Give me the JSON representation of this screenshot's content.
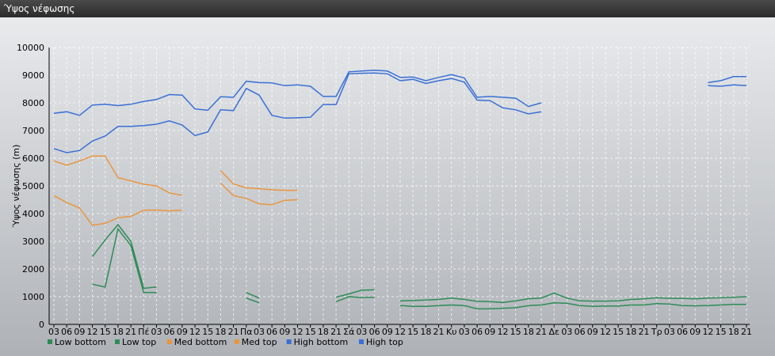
{
  "window": {
    "title": "Ύψος νέφωσης"
  },
  "chart_data": {
    "type": "line",
    "ylabel": "Ύψος νέφωσης (m)",
    "ylim": [
      0,
      10000
    ],
    "yticks": [
      0,
      1000,
      2000,
      3000,
      4000,
      5000,
      6000,
      7000,
      8000,
      9000,
      10000
    ],
    "grid": true,
    "legend_position": "bottom-left",
    "x_tick_labels": [
      "03",
      "06",
      "09",
      "12",
      "15",
      "18",
      "21",
      "Πέ",
      "03",
      "06",
      "09",
      "12",
      "15",
      "18",
      "21",
      "Πα",
      "03",
      "06",
      "09",
      "12",
      "15",
      "18",
      "21",
      "Σά",
      "03",
      "06",
      "09",
      "12",
      "15",
      "18",
      "21",
      "Κυ",
      "03",
      "06",
      "09",
      "12",
      "15",
      "18",
      "21",
      "Δε",
      "03",
      "06",
      "09",
      "12",
      "15",
      "18",
      "21",
      "Τρ",
      "03",
      "06",
      "09",
      "12",
      "15",
      "18",
      "21"
    ],
    "series": [
      {
        "name": "Low bottom",
        "color": "#2e8b57",
        "values": [
          null,
          null,
          null,
          1450,
          1350,
          3450,
          2850,
          1150,
          1150,
          null,
          null,
          null,
          null,
          null,
          null,
          950,
          780,
          null,
          null,
          null,
          null,
          null,
          820,
          1000,
          970,
          980,
          null,
          680,
          650,
          650,
          680,
          700,
          680,
          560,
          560,
          580,
          600,
          680,
          700,
          780,
          760,
          680,
          650,
          660,
          660,
          700,
          700,
          750,
          730,
          680,
          670,
          680,
          700,
          720,
          720
        ]
      },
      {
        "name": "Low top",
        "color": "#2e8b57",
        "values": [
          null,
          null,
          null,
          2450,
          3050,
          3600,
          3000,
          1300,
          1350,
          null,
          null,
          null,
          null,
          null,
          null,
          1150,
          950,
          null,
          null,
          null,
          null,
          null,
          980,
          1100,
          1230,
          1250,
          null,
          850,
          860,
          880,
          900,
          950,
          900,
          830,
          820,
          790,
          850,
          920,
          950,
          1130,
          950,
          850,
          840,
          840,
          850,
          900,
          920,
          960,
          940,
          940,
          920,
          950,
          960,
          980,
          1000
        ]
      },
      {
        "name": "Med bottom",
        "color": "#e8963f",
        "values": [
          4650,
          4400,
          4200,
          3580,
          3650,
          3850,
          3900,
          4120,
          4130,
          4100,
          4120,
          null,
          null,
          5100,
          4650,
          4550,
          4350,
          4320,
          4480,
          4500,
          null,
          null,
          null,
          null,
          null,
          null,
          null,
          null,
          null,
          null,
          null,
          null,
          null,
          null,
          null,
          null,
          null,
          null,
          null,
          null,
          null,
          null,
          null,
          null,
          null,
          null,
          null,
          null,
          null,
          null,
          null,
          null,
          null,
          null,
          null
        ]
      },
      {
        "name": "Med top",
        "color": "#e8963f",
        "values": [
          5900,
          5750,
          5900,
          6080,
          6080,
          5300,
          5180,
          5060,
          5000,
          4750,
          4660,
          null,
          null,
          5550,
          5070,
          4930,
          4900,
          4860,
          4840,
          4840,
          null,
          null,
          null,
          null,
          null,
          null,
          null,
          null,
          null,
          null,
          null,
          null,
          null,
          null,
          null,
          null,
          null,
          null,
          null,
          null,
          null,
          null,
          null,
          null,
          null,
          null,
          null,
          null,
          null,
          null,
          null,
          null,
          null,
          null,
          null
        ]
      },
      {
        "name": "High bottom",
        "color": "#3a6fd6",
        "values": [
          6350,
          6200,
          6280,
          6620,
          6800,
          7150,
          7150,
          7180,
          7230,
          7350,
          7200,
          6820,
          6950,
          7750,
          7720,
          8520,
          8280,
          7550,
          7450,
          7460,
          7480,
          7940,
          7940,
          9050,
          9070,
          9080,
          9050,
          8800,
          8850,
          8700,
          8800,
          8880,
          8750,
          8100,
          8080,
          7820,
          7750,
          7600,
          7680,
          null,
          null,
          null,
          null,
          null,
          null,
          null,
          null,
          null,
          null,
          null,
          null,
          8620,
          8600,
          8650,
          8620
        ]
      },
      {
        "name": "High top",
        "color": "#3a6fd6",
        "values": [
          7620,
          7680,
          7550,
          7920,
          7950,
          7900,
          7950,
          8050,
          8120,
          8300,
          8280,
          7780,
          7730,
          8220,
          8200,
          8780,
          8730,
          8720,
          8620,
          8650,
          8600,
          8230,
          8230,
          9120,
          9150,
          9180,
          9150,
          8920,
          8930,
          8800,
          8920,
          9020,
          8900,
          8200,
          8230,
          8200,
          8170,
          7870,
          8000,
          null,
          null,
          null,
          null,
          null,
          null,
          null,
          null,
          null,
          null,
          null,
          null,
          8730,
          8800,
          8950,
          8950
        ]
      }
    ]
  }
}
